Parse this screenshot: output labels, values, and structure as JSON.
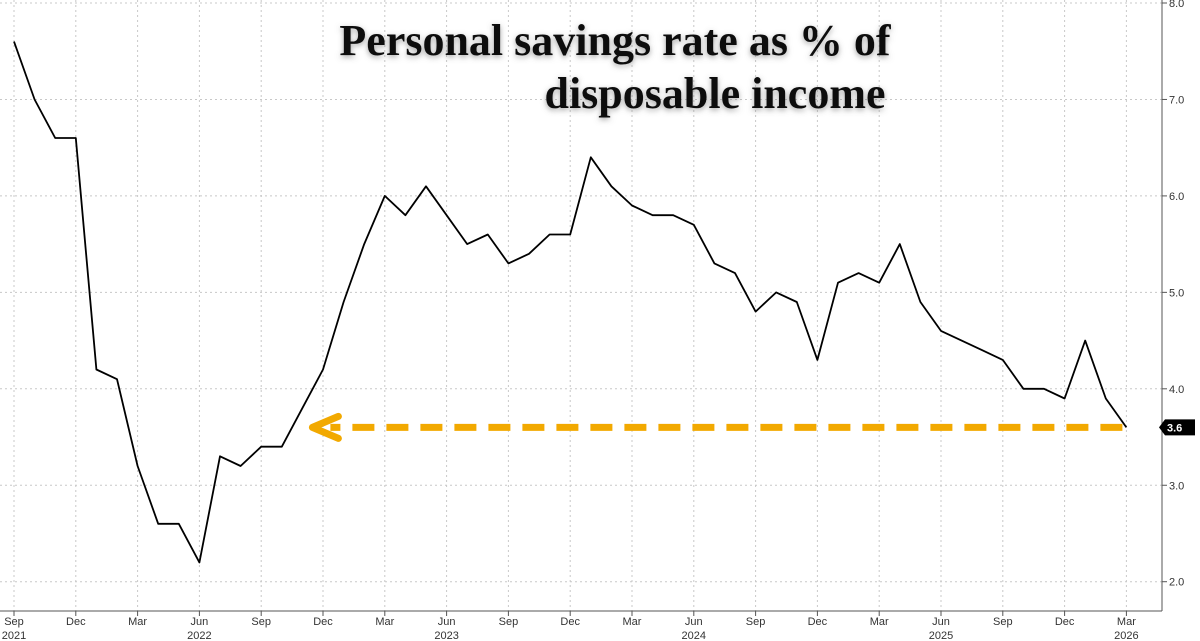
{
  "chart_data": {
    "type": "line",
    "title_lines": [
      "Personal savings rate as % of",
      "disposable income"
    ],
    "xlabel": "",
    "ylabel": "",
    "ylim": [
      1.8,
      8.0
    ],
    "y_ticks": [
      2.0,
      3.0,
      4.0,
      5.0,
      6.0,
      7.0,
      8.0
    ],
    "y_tick_labels": [
      "2.0",
      "3.0",
      "4.0",
      "5.0",
      "6.0",
      "7.0",
      "8.0"
    ],
    "x_ticks": [
      {
        "month": "2021-09",
        "label": "Sep"
      },
      {
        "month": "2021-12",
        "label": "Dec"
      },
      {
        "month": "2022-03",
        "label": "Mar"
      },
      {
        "month": "2022-06",
        "label": "Jun"
      },
      {
        "month": "2022-09",
        "label": "Sep"
      },
      {
        "month": "2022-12",
        "label": "Dec"
      },
      {
        "month": "2023-03",
        "label": "Mar"
      },
      {
        "month": "2023-06",
        "label": "Jun"
      },
      {
        "month": "2023-09",
        "label": "Sep"
      },
      {
        "month": "2023-12",
        "label": "Dec"
      },
      {
        "month": "2024-03",
        "label": "Mar"
      },
      {
        "month": "2024-06",
        "label": "Jun"
      },
      {
        "month": "2024-09",
        "label": "Sep"
      },
      {
        "month": "2024-12",
        "label": "Dec"
      },
      {
        "month": "2025-03",
        "label": "Mar"
      },
      {
        "month": "2025-06",
        "label": "Jun"
      },
      {
        "month": "2025-09",
        "label": "Sep"
      },
      {
        "month": "2025-12",
        "label": "Dec"
      },
      {
        "month": "2026-03",
        "label": "Mar"
      }
    ],
    "year_labels": [
      {
        "month": "2021-09",
        "label": "2021"
      },
      {
        "month": "2022-06",
        "label": "2022"
      },
      {
        "month": "2023-06",
        "label": "2023"
      },
      {
        "month": "2024-06",
        "label": "2024"
      },
      {
        "month": "2025-06",
        "label": "2025"
      },
      {
        "month": "2026-03",
        "label": "2026"
      }
    ],
    "series": [
      {
        "color": "#000000",
        "x": [
          "2021-09",
          "2021-10",
          "2021-11",
          "2021-12",
          "2022-01",
          "2022-02",
          "2022-03",
          "2022-04",
          "2022-05",
          "2022-06",
          "2022-07",
          "2022-08",
          "2022-09",
          "2022-10",
          "2022-11",
          "2022-12",
          "2023-01",
          "2023-02",
          "2023-03",
          "2023-04",
          "2023-05",
          "2023-06",
          "2023-07",
          "2023-08",
          "2023-09",
          "2023-10",
          "2023-11",
          "2023-12",
          "2024-01",
          "2024-02",
          "2024-03",
          "2024-04",
          "2024-05",
          "2024-06",
          "2024-07",
          "2024-08",
          "2024-09",
          "2024-10",
          "2024-11",
          "2024-12",
          "2025-01",
          "2025-02",
          "2025-03",
          "2025-04",
          "2025-05",
          "2025-06",
          "2025-07",
          "2025-08",
          "2025-09",
          "2025-10",
          "2025-11",
          "2025-12",
          "2026-01",
          "2026-02",
          "2026-03"
        ],
        "values": [
          7.6,
          7.0,
          6.6,
          6.6,
          4.2,
          4.1,
          3.2,
          2.6,
          2.6,
          2.2,
          3.3,
          3.2,
          3.4,
          3.4,
          3.8,
          4.2,
          4.9,
          5.5,
          6.0,
          5.8,
          6.1,
          5.8,
          5.5,
          5.6,
          5.3,
          5.4,
          5.6,
          5.6,
          6.4,
          6.1,
          5.9,
          5.8,
          5.8,
          5.7,
          5.3,
          5.2,
          4.8,
          5.0,
          4.9,
          4.3,
          5.1,
          5.2,
          5.1,
          5.5,
          4.9,
          4.6,
          4.5,
          4.4,
          4.3,
          4.0,
          4.0,
          3.9,
          4.5,
          3.9,
          3.6
        ]
      }
    ],
    "last_value_label": "3.6",
    "reference_arrow": {
      "value": 3.6,
      "from_month": "2026-03",
      "to_month": "2022-11",
      "color": "#f2a900"
    },
    "grid": true,
    "legend": "none"
  }
}
